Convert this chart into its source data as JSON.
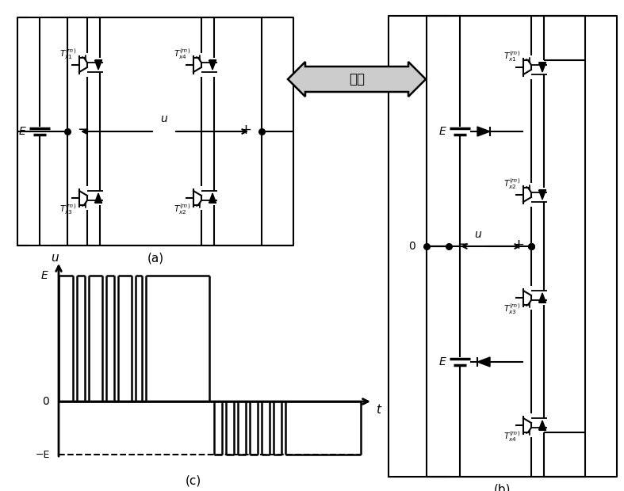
{
  "bg_color": "#ffffff",
  "line_color": "#000000",
  "panel_a_label": "(a)",
  "panel_b_label": "(b)",
  "panel_c_label": "(c)",
  "equiv_text": "等效"
}
